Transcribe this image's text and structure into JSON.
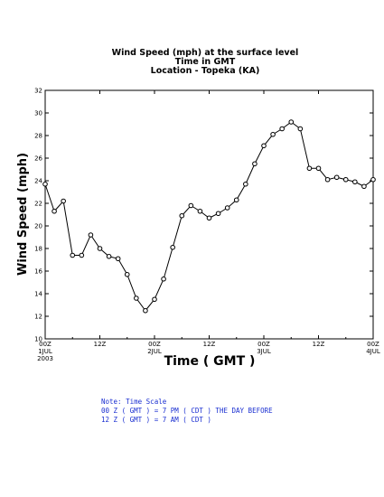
{
  "chart_data": {
    "type": "line",
    "title_lines": [
      "Wind Speed (mph) at the surface level",
      "Time in GMT",
      "Location - Topeka (KA)"
    ],
    "xlabel": "Time ( GMT )",
    "ylabel": "Wind Speed (mph)",
    "ylim": [
      10,
      32
    ],
    "yticks": [
      "10",
      "12",
      "14",
      "16",
      "18",
      "20",
      "22",
      "24",
      "26",
      "28",
      "30",
      "32"
    ],
    "xlim_hours": [
      0,
      72
    ],
    "xticks": [
      {
        "hour": 0,
        "lines": [
          "00Z",
          "1JUL",
          "2003"
        ]
      },
      {
        "hour": 12,
        "lines": [
          "12Z"
        ]
      },
      {
        "hour": 24,
        "lines": [
          "00Z",
          "2JUL"
        ]
      },
      {
        "hour": 36,
        "lines": [
          "12Z"
        ]
      },
      {
        "hour": 48,
        "lines": [
          "00Z",
          "3JUL"
        ]
      },
      {
        "hour": 60,
        "lines": [
          "12Z"
        ]
      },
      {
        "hour": 72,
        "lines": [
          "00Z",
          "4JUL"
        ]
      }
    ],
    "grid": false,
    "series": [
      {
        "marker": "open-circle",
        "color": "#000000",
        "x_hours": [
          0,
          2,
          4,
          6,
          8,
          10,
          12,
          14,
          16,
          18,
          20,
          22,
          24,
          26,
          28,
          30,
          32,
          34,
          36,
          38,
          40,
          42,
          44,
          46,
          48,
          50,
          52,
          54,
          56,
          58,
          60,
          62,
          64,
          66,
          68,
          70,
          72
        ],
        "values": [
          23.7,
          21.3,
          22.2,
          17.4,
          17.4,
          19.2,
          18.0,
          17.3,
          17.1,
          15.7,
          13.6,
          12.5,
          13.5,
          15.3,
          18.1,
          20.9,
          21.8,
          21.3,
          20.7,
          21.1,
          21.6,
          22.3,
          23.7,
          25.5,
          27.1,
          28.1,
          28.6,
          29.2,
          28.6,
          25.1,
          25.1,
          24.1,
          24.3,
          24.1,
          23.9,
          23.5,
          24.1
        ]
      }
    ]
  },
  "note": {
    "lines": [
      "Note: Time Scale",
      "00 Z ( GMT ) = 7 PM ( CDT ) THE DAY BEFORE",
      "12 Z ( GMT ) = 7 AM ( CDT )"
    ]
  },
  "colors": {
    "note_text": "#1a2fd1",
    "line": "#000000",
    "axes": "#000000"
  }
}
